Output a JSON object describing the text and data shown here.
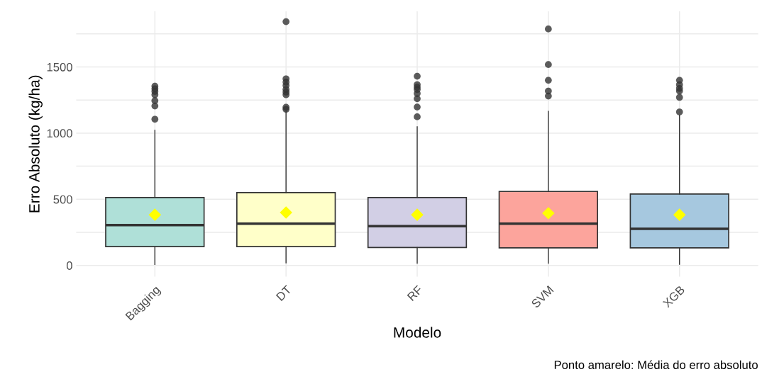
{
  "chart_data": {
    "type": "box",
    "xlabel": "Modelo",
    "ylabel": "Erro Absoluto (kg/ha)",
    "categories": [
      "Bagging",
      "DT",
      "RF",
      "SVM",
      "XGB"
    ],
    "colors": [
      "#afe0d8",
      "#ffffc9",
      "#d2cfe5",
      "#fca49c",
      "#a6c8df"
    ],
    "boxes": [
      {
        "low": 7,
        "q1": 142,
        "median": 305,
        "q3": 513,
        "high": 1021,
        "mean": 383,
        "outliers": [
          1105,
          1205,
          1245,
          1290,
          1315,
          1335,
          1355
        ]
      },
      {
        "low": 20,
        "q1": 142,
        "median": 315,
        "q3": 550,
        "high": 1165,
        "mean": 400,
        "outliers": [
          1180,
          1195,
          1290,
          1310,
          1330,
          1360,
          1385,
          1410,
          1842
        ]
      },
      {
        "low": 17,
        "q1": 135,
        "median": 297,
        "q3": 513,
        "high": 1048,
        "mean": 383,
        "outliers": [
          1123,
          1197,
          1260,
          1299,
          1330,
          1347,
          1366,
          1430
        ]
      },
      {
        "low": 17,
        "q1": 133,
        "median": 316,
        "q3": 559,
        "high": 1164,
        "mean": 394,
        "outliers": [
          1280,
          1318,
          1399,
          1518,
          1787
        ]
      },
      {
        "low": 8,
        "q1": 133,
        "median": 277,
        "q3": 540,
        "high": 1135,
        "mean": 383,
        "outliers": [
          1160,
          1270,
          1318,
          1338,
          1366,
          1399
        ]
      }
    ],
    "ylim": [
      -85,
      1920
    ],
    "yticks": [
      0,
      {
        "value": 250,
        "label": null
      },
      500,
      {
        "value": 750,
        "label": null
      },
      1000,
      {
        "value": 1250,
        "label": null
      },
      1500,
      {
        "value": 1750,
        "label": null
      }
    ],
    "grid": true,
    "annotations": [
      "Ponto amarelo: Média do erro absoluto"
    ]
  }
}
